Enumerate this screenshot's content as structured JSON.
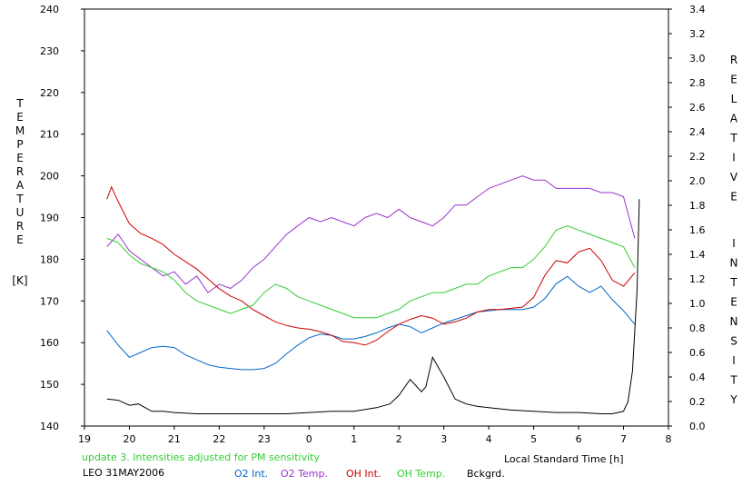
{
  "chart_data": {
    "type": "line",
    "xlabel": "Local Standard Time [h]",
    "ylabel_left": "TEMPERATURE",
    "ylabel_left_unit": "[K]",
    "ylabel_right": "RELATIVE INTENSITY",
    "x_ticks": [
      "19",
      "20",
      "21",
      "22",
      "23",
      "0",
      "1",
      "2",
      "3",
      "4",
      "5",
      "6",
      "7",
      "8"
    ],
    "x_range": [
      19,
      32
    ],
    "y_left_ticks": [
      "140",
      "150",
      "160",
      "170",
      "180",
      "190",
      "200",
      "210",
      "220",
      "230",
      "240"
    ],
    "y_left_range": [
      140,
      240
    ],
    "y_right_ticks": [
      "0.0",
      "0.2",
      "0.4",
      "0.6",
      "0.8",
      "1.0",
      "1.2",
      "1.4",
      "1.6",
      "1.8",
      "2.0",
      "2.2",
      "2.4",
      "2.6",
      "2.8",
      "3.0",
      "3.2",
      "3.4"
    ],
    "y_right_range": [
      0,
      3.4
    ],
    "note": "update 3. Intensities adjusted for PM sensitivity",
    "station_date": "LEO 31MAY2006",
    "series": [
      {
        "name": "O2 Int.",
        "color": "#0066cc",
        "axis": "right",
        "x": [
          19.5,
          19.75,
          20.0,
          20.25,
          20.5,
          20.75,
          21.0,
          21.25,
          21.5,
          21.75,
          22.0,
          22.25,
          22.5,
          22.75,
          23.0,
          23.25,
          23.5,
          23.75,
          24.0,
          24.25,
          24.5,
          24.75,
          25.0,
          25.25,
          25.5,
          25.75,
          26.0,
          26.25,
          26.5,
          26.75,
          27.0,
          27.25,
          27.5,
          27.75,
          28.0,
          28.25,
          28.5,
          28.75,
          29.0,
          29.25,
          29.5,
          29.75,
          30.0,
          30.25,
          30.5,
          30.75,
          31.0,
          31.25
        ],
        "y": [
          0.78,
          0.66,
          0.56,
          0.6,
          0.64,
          0.65,
          0.64,
          0.58,
          0.54,
          0.5,
          0.48,
          0.47,
          0.46,
          0.46,
          0.47,
          0.51,
          0.59,
          0.66,
          0.72,
          0.75,
          0.74,
          0.71,
          0.71,
          0.73,
          0.76,
          0.8,
          0.83,
          0.81,
          0.76,
          0.8,
          0.84,
          0.87,
          0.9,
          0.93,
          0.94,
          0.95,
          0.95,
          0.95,
          0.97,
          1.04,
          1.16,
          1.22,
          1.14,
          1.09,
          1.14,
          1.03,
          0.94,
          0.83
        ]
      },
      {
        "name": "O2 Temp.",
        "color": "#9933cc",
        "axis": "left",
        "x": [
          19.5,
          19.75,
          20.0,
          20.25,
          20.5,
          20.75,
          21.0,
          21.25,
          21.5,
          21.75,
          22.0,
          22.25,
          22.5,
          22.75,
          23.0,
          23.25,
          23.5,
          23.75,
          24.0,
          24.25,
          24.5,
          24.75,
          25.0,
          25.25,
          25.5,
          25.75,
          26.0,
          26.25,
          26.5,
          26.75,
          27.0,
          27.25,
          27.5,
          27.75,
          28.0,
          28.25,
          28.5,
          28.75,
          29.0,
          29.25,
          29.5,
          29.75,
          30.0,
          30.25,
          30.5,
          30.75,
          31.0,
          31.25
        ],
        "y": [
          183,
          186,
          182,
          180,
          178,
          176,
          177,
          174,
          176,
          172,
          174,
          173,
          175,
          178,
          180,
          183,
          186,
          188,
          190,
          189,
          190,
          189,
          188,
          190,
          191,
          190,
          192,
          190,
          189,
          188,
          190,
          193,
          193,
          195,
          197,
          198,
          199,
          200,
          199,
          199,
          197,
          197,
          197,
          197,
          196,
          196,
          195,
          185
        ]
      },
      {
        "name": "OH Int.",
        "color": "#cc0000",
        "axis": "right",
        "x": [
          19.5,
          19.6,
          19.75,
          20.0,
          20.25,
          20.5,
          20.75,
          21.0,
          21.25,
          21.5,
          21.75,
          22.0,
          22.25,
          22.5,
          22.75,
          23.0,
          23.25,
          23.5,
          23.75,
          24.0,
          24.25,
          24.5,
          24.75,
          25.0,
          25.25,
          25.5,
          25.75,
          26.0,
          26.25,
          26.5,
          26.75,
          27.0,
          27.25,
          27.5,
          27.75,
          28.0,
          28.25,
          28.5,
          28.75,
          29.0,
          29.25,
          29.5,
          29.75,
          30.0,
          30.25,
          30.5,
          30.75,
          31.0,
          31.25
        ],
        "y": [
          1.85,
          1.95,
          1.83,
          1.65,
          1.57,
          1.53,
          1.48,
          1.4,
          1.34,
          1.28,
          1.2,
          1.12,
          1.06,
          1.02,
          0.95,
          0.9,
          0.85,
          0.82,
          0.8,
          0.79,
          0.77,
          0.74,
          0.69,
          0.68,
          0.66,
          0.7,
          0.77,
          0.83,
          0.87,
          0.9,
          0.88,
          0.83,
          0.85,
          0.88,
          0.93,
          0.95,
          0.95,
          0.96,
          0.97,
          1.05,
          1.23,
          1.35,
          1.33,
          1.42,
          1.45,
          1.35,
          1.19,
          1.14,
          1.25
        ]
      },
      {
        "name": "OH Temp.",
        "color": "#33cc33",
        "axis": "left",
        "x": [
          19.5,
          19.75,
          20.0,
          20.25,
          20.5,
          20.75,
          21.0,
          21.25,
          21.5,
          21.75,
          22.0,
          22.25,
          22.5,
          22.75,
          23.0,
          23.25,
          23.5,
          23.75,
          24.0,
          24.25,
          24.5,
          24.75,
          25.0,
          25.25,
          25.5,
          25.75,
          26.0,
          26.25,
          26.5,
          26.75,
          27.0,
          27.25,
          27.5,
          27.75,
          28.0,
          28.25,
          28.5,
          28.75,
          29.0,
          29.25,
          29.5,
          29.75,
          30.0,
          30.25,
          30.5,
          30.75,
          31.0,
          31.25
        ],
        "y": [
          185,
          184,
          181,
          179,
          178,
          177,
          175,
          172,
          170,
          169,
          168,
          167,
          168,
          169,
          172,
          174,
          173,
          171,
          170,
          169,
          168,
          167,
          166,
          166,
          166,
          167,
          168,
          170,
          171,
          172,
          172,
          173,
          174,
          174,
          176,
          177,
          178,
          178,
          180,
          183,
          187,
          188,
          187,
          186,
          185,
          184,
          183,
          178
        ]
      },
      {
        "name": "Bckgrd.",
        "color": "#000000",
        "axis": "right",
        "x": [
          19.5,
          19.75,
          20.0,
          20.2,
          20.5,
          20.75,
          21.0,
          21.5,
          22.0,
          22.5,
          23.0,
          23.5,
          24.0,
          24.5,
          25.0,
          25.5,
          25.8,
          26.0,
          26.25,
          26.5,
          26.6,
          26.75,
          27.0,
          27.25,
          27.5,
          27.75,
          28.0,
          28.5,
          29.0,
          29.5,
          30.0,
          30.5,
          30.75,
          31.0,
          31.1,
          31.2,
          31.3,
          31.35
        ],
        "y": [
          0.22,
          0.21,
          0.17,
          0.18,
          0.12,
          0.12,
          0.11,
          0.1,
          0.1,
          0.1,
          0.1,
          0.1,
          0.11,
          0.12,
          0.12,
          0.15,
          0.18,
          0.25,
          0.38,
          0.28,
          0.32,
          0.56,
          0.4,
          0.22,
          0.18,
          0.16,
          0.15,
          0.13,
          0.12,
          0.11,
          0.11,
          0.1,
          0.1,
          0.12,
          0.2,
          0.45,
          1.1,
          1.85
        ]
      }
    ]
  }
}
